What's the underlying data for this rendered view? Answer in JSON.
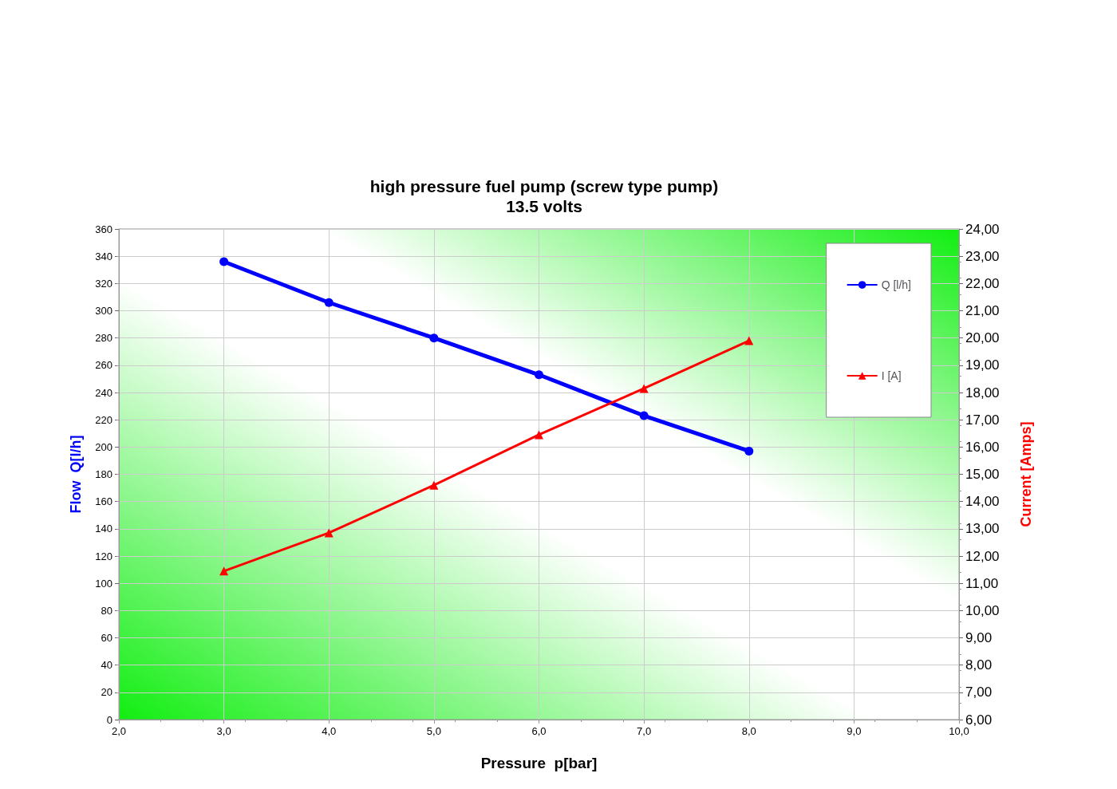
{
  "chart_data": {
    "type": "line",
    "title": "high pressure fuel pump (screw type pump)",
    "subtitle": "13.5 volts",
    "xlabel": "Pressure  p[bar]",
    "ylabel": "Flow  Q[l/h]",
    "y2label": "Current [Amps]",
    "x": [
      3,
      4,
      5,
      6,
      7,
      8
    ],
    "series": [
      {
        "name": "Q [l/h]",
        "color": "#0000ff",
        "values": [
          336,
          306,
          280,
          253,
          223,
          197
        ],
        "marker": "circle"
      },
      {
        "name": "I [A]",
        "color": "#ff0000",
        "values": [
          11.45,
          12.85,
          14.6,
          16.45,
          18.15,
          19.9
        ],
        "marker": "triangle",
        "axis": "y2"
      }
    ],
    "xlim": [
      2,
      10
    ],
    "xticks": [
      {
        "value": 2,
        "label": "2,0"
      },
      {
        "value": 3,
        "label": "3,0"
      },
      {
        "value": 4,
        "label": "4,0"
      },
      {
        "value": 5,
        "label": "5,0"
      },
      {
        "value": 6,
        "label": "6,0"
      },
      {
        "value": 7,
        "label": "7,0"
      },
      {
        "value": 8,
        "label": "8,0"
      },
      {
        "value": 9,
        "label": "9,0"
      },
      {
        "value": 10,
        "label": "10,0"
      }
    ],
    "ylim": [
      0,
      360
    ],
    "yticks": [
      0,
      20,
      40,
      60,
      80,
      100,
      120,
      140,
      160,
      180,
      200,
      220,
      240,
      260,
      280,
      300,
      320,
      340,
      360
    ],
    "y2lim": [
      6,
      24
    ],
    "y2ticks": [
      {
        "value": 6,
        "label": "6,00"
      },
      {
        "value": 7,
        "label": "7,00"
      },
      {
        "value": 8,
        "label": "8,00"
      },
      {
        "value": 9,
        "label": "9,00"
      },
      {
        "value": 10,
        "label": "10,00"
      },
      {
        "value": 11,
        "label": "11,00"
      },
      {
        "value": 12,
        "label": "12,00"
      },
      {
        "value": 13,
        "label": "13,00"
      },
      {
        "value": 14,
        "label": "14,00"
      },
      {
        "value": 15,
        "label": "15,00"
      },
      {
        "value": 16,
        "label": "16,00"
      },
      {
        "value": 17,
        "label": "17,00"
      },
      {
        "value": 18,
        "label": "18,00"
      },
      {
        "value": 19,
        "label": "19,00"
      },
      {
        "value": 20,
        "label": "20,00"
      },
      {
        "value": 21,
        "label": "21,00"
      },
      {
        "value": 22,
        "label": "22,00"
      },
      {
        "value": 23,
        "label": "23,00"
      },
      {
        "value": 24,
        "label": "24,00"
      }
    ],
    "grid": true,
    "legend": "top right",
    "line_style": "solid"
  }
}
